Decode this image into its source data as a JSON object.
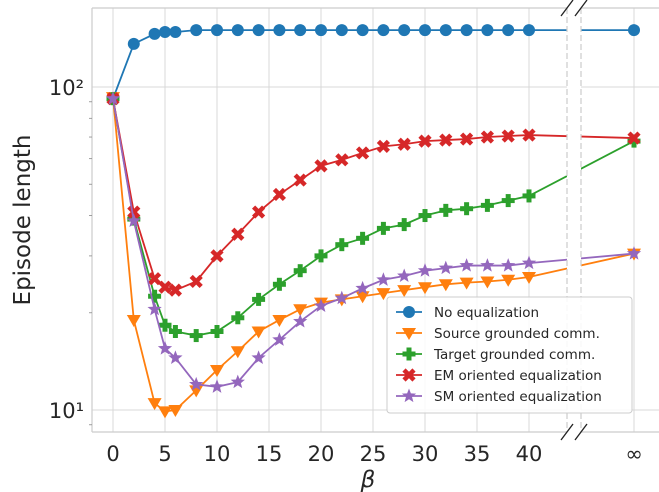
{
  "chart_data": {
    "type": "line",
    "xlabel": "β",
    "ylabel": "Episode length",
    "yscale": "log",
    "ylim": [
      9,
      165
    ],
    "grid": true,
    "legend_position": "lower-right",
    "x_ticks": [
      "0",
      "5",
      "10",
      "15",
      "20",
      "25",
      "30",
      "35",
      "40",
      "∞"
    ],
    "y_ticks": [
      "10¹",
      "10²"
    ],
    "broken_x_axis": true,
    "infinity_label": "∞",
    "series": [
      {
        "name": "No equalization",
        "color": "#1f77b4",
        "marker": "circle",
        "x": [
          0,
          2,
          4,
          5,
          6,
          8,
          10,
          12,
          14,
          16,
          18,
          20,
          22,
          24,
          26,
          28,
          30,
          32,
          34,
          36,
          38,
          40,
          "inf"
        ],
        "y": [
          92,
          136,
          146,
          148,
          148,
          150,
          150,
          150,
          150,
          150,
          150,
          150,
          150,
          150,
          150,
          150,
          150,
          150,
          150,
          150,
          150,
          150,
          150
        ]
      },
      {
        "name": "Source grounded comm.",
        "color": "#ff7f0e",
        "marker": "triangle-down",
        "x": [
          0,
          2,
          4,
          5,
          6,
          8,
          10,
          12,
          14,
          16,
          18,
          20,
          22,
          24,
          26,
          28,
          30,
          32,
          34,
          36,
          38,
          40,
          "inf"
        ],
        "y": [
          93,
          19,
          10.5,
          9.9,
          10,
          11.5,
          13.3,
          15.2,
          17.5,
          19,
          20.5,
          21.5,
          22,
          22.5,
          23,
          23.5,
          24,
          24.5,
          24.8,
          25,
          25.3,
          25.8,
          30.5
        ]
      },
      {
        "name": "Target grounded comm.",
        "color": "#2ca02c",
        "marker": "plus",
        "x": [
          0,
          2,
          4,
          5,
          6,
          8,
          10,
          12,
          14,
          16,
          18,
          20,
          22,
          24,
          26,
          28,
          30,
          32,
          34,
          36,
          38,
          40,
          "inf"
        ],
        "y": [
          92,
          39,
          22.5,
          18.3,
          17.5,
          17,
          17.5,
          19.3,
          22,
          24.5,
          27,
          30,
          32.5,
          34,
          36.5,
          37.5,
          40,
          41.5,
          42,
          43,
          44.5,
          46,
          68
        ]
      },
      {
        "name": "EM oriented equalization",
        "color": "#d62728",
        "marker": "x",
        "x": [
          0,
          2,
          4,
          5,
          6,
          8,
          10,
          12,
          14,
          16,
          18,
          20,
          22,
          24,
          26,
          28,
          30,
          32,
          34,
          36,
          38,
          40,
          "inf"
        ],
        "y": [
          92,
          41,
          25.5,
          24,
          23.5,
          25,
          30,
          35,
          41,
          46.5,
          51.5,
          57,
          59.5,
          62.5,
          65.5,
          66.5,
          68,
          68.5,
          69,
          70,
          70.5,
          71,
          69.5
        ]
      },
      {
        "name": "SM oriented equalization",
        "color": "#9467bd",
        "marker": "star",
        "x": [
          0,
          2,
          4,
          5,
          6,
          8,
          10,
          12,
          14,
          16,
          18,
          20,
          22,
          24,
          26,
          28,
          30,
          32,
          34,
          36,
          38,
          40,
          "inf"
        ],
        "y": [
          92,
          38.5,
          20.5,
          15.5,
          14.5,
          12,
          11.8,
          12.2,
          14.5,
          16.5,
          18.8,
          21,
          22.2,
          23.8,
          25.3,
          26,
          27,
          27.5,
          28,
          28,
          28,
          28.5,
          30.5
        ]
      }
    ]
  }
}
